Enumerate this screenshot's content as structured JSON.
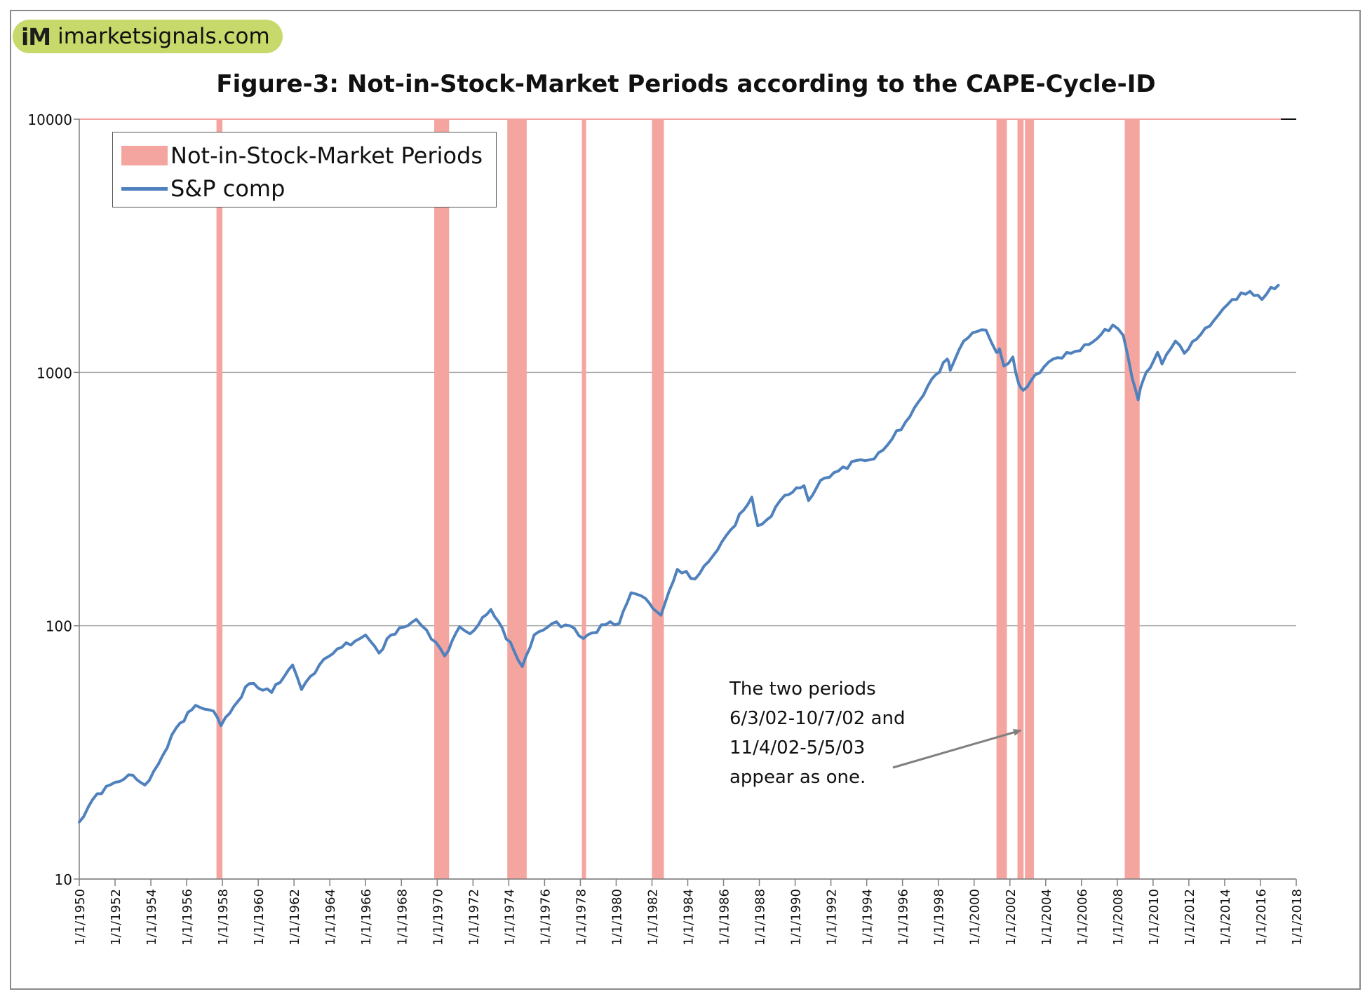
{
  "logo": {
    "mark": "iM",
    "text": "imarketsignals.com"
  },
  "chart_data": {
    "type": "line",
    "title": "Figure-3:  Not-in-Stock-Market  Periods according to the CAPE-Cycle-ID",
    "xlabel": "",
    "ylabel": "",
    "yscale": "log",
    "ylim": [
      10,
      10000
    ],
    "y_ticks": [
      "10",
      "100",
      "1000",
      "10000"
    ],
    "xlim": [
      "1950-01-01",
      "2018-01-01"
    ],
    "x_ticks": [
      "1/1/1950",
      "1/1/1952",
      "1/1/1954",
      "1/1/1956",
      "1/1/1958",
      "1/1/1960",
      "1/1/1962",
      "1/1/1964",
      "1/1/1966",
      "1/1/1968",
      "1/1/1970",
      "1/1/1972",
      "1/1/1974",
      "1/1/1976",
      "1/1/1978",
      "1/1/1980",
      "1/1/1982",
      "1/1/1984",
      "1/1/1986",
      "1/1/1988",
      "1/1/1990",
      "1/1/1992",
      "1/1/1994",
      "1/1/1996",
      "1/1/1998",
      "1/1/2000",
      "1/1/2002",
      "1/1/2004",
      "1/1/2006",
      "1/1/2008",
      "1/1/2010",
      "1/1/2012",
      "1/1/2014",
      "1/1/2016",
      "1/1/2018"
    ],
    "grid": "horizontal",
    "legend": "top-left",
    "legend_entries": [
      "Not-in-Stock-Market Periods",
      "S&P comp"
    ],
    "colors": {
      "periods": "#f4a5a0",
      "line": "#4f81bd",
      "grid": "#a6a6a6",
      "arrow": "#808080"
    },
    "periods": [
      {
        "start": "1957-09-01",
        "end": "1958-01-01"
      },
      {
        "start": "1969-11-01",
        "end": "1970-09-01"
      },
      {
        "start": "1973-12-01",
        "end": "1975-01-01"
      },
      {
        "start": "1978-02-01",
        "end": "1978-04-01"
      },
      {
        "start": "1982-01-01",
        "end": "1982-09-01"
      },
      {
        "start": "2001-04-01",
        "end": "2001-11-01"
      },
      {
        "start": "2002-06-03",
        "end": "2002-10-07"
      },
      {
        "start": "2002-11-04",
        "end": "2003-05-05"
      },
      {
        "start": "2008-06-01",
        "end": "2009-04-01"
      }
    ],
    "series": [
      {
        "name": "S&P comp",
        "x": [
          "1950-01-01",
          "1951-01-01",
          "1952-01-01",
          "1953-01-01",
          "1953-09-01",
          "1954-06-01",
          "1955-06-01",
          "1956-07-01",
          "1957-07-01",
          "1957-12-01",
          "1958-06-01",
          "1959-07-01",
          "1960-10-01",
          "1961-12-01",
          "1962-06-01",
          "1963-06-01",
          "1964-06-01",
          "1965-06-01",
          "1966-01-01",
          "1966-10-01",
          "1967-06-01",
          "1968-11-01",
          "1969-06-01",
          "1970-06-01",
          "1971-04-01",
          "1971-11-01",
          "1973-01-01",
          "1973-06-01",
          "1974-10-01",
          "1975-06-01",
          "1976-06-01",
          "1977-06-01",
          "1978-03-01",
          "1979-06-01",
          "1980-03-01",
          "1980-11-01",
          "1981-06-01",
          "1982-07-01",
          "1983-06-01",
          "1984-06-01",
          "1985-06-01",
          "1986-06-01",
          "1987-08-01",
          "1987-12-01",
          "1988-06-01",
          "1989-06-01",
          "1990-07-01",
          "1990-10-01",
          "1991-06-01",
          "1992-06-01",
          "1993-06-01",
          "1994-06-01",
          "1995-06-01",
          "1996-06-01",
          "1997-06-01",
          "1998-07-01",
          "1998-09-01",
          "1999-06-01",
          "2000-03-01",
          "2000-09-01",
          "2001-04-01",
          "2001-06-01",
          "2001-09-01",
          "2002-03-01",
          "2002-07-01",
          "2002-10-01",
          "2003-06-01",
          "2004-06-01",
          "2005-06-01",
          "2006-06-01",
          "2007-10-01",
          "2008-05-01",
          "2008-11-01",
          "2009-03-01",
          "2009-06-01",
          "2010-04-01",
          "2010-07-01",
          "2011-04-01",
          "2011-10-01",
          "2012-06-01",
          "2013-06-01",
          "2014-06-01",
          "2015-06-01",
          "2016-02-01",
          "2016-08-01",
          "2017-01-01"
        ],
        "values": [
          16.8,
          21.7,
          24.1,
          25.7,
          23.5,
          28.4,
          39.5,
          48.5,
          46.0,
          40.3,
          45.2,
          59.1,
          54.5,
          70.0,
          56.0,
          70.0,
          81.0,
          87.0,
          92.0,
          78.0,
          92.0,
          106.0,
          96.0,
          76.0,
          99.0,
          93.0,
          116.0,
          104.0,
          69.0,
          92.0,
          102.0,
          100.0,
          89.0,
          101.0,
          102.0,
          135.0,
          131.0,
          110.0,
          167.0,
          153.0,
          189.0,
          240.0,
          322.0,
          248.0,
          262.0,
          327.0,
          357.0,
          312.0,
          375.0,
          408.0,
          449.0,
          456.0,
          546.0,
          670.0,
          885.0,
          1130.0,
          1020.0,
          1330.0,
          1450.0,
          1470.0,
          1200.0,
          1240.0,
          1060.0,
          1150.0,
          900.0,
          850.0,
          980.0,
          1130.0,
          1190.0,
          1290.0,
          1540.0,
          1400.0,
          950.0,
          780.0,
          920.0,
          1200.0,
          1080.0,
          1330.0,
          1190.0,
          1350.0,
          1610.0,
          1940.0,
          2090.0,
          1940.0,
          2170.0,
          2210.0
        ]
      }
    ],
    "annotation": [
      "The two periods",
      "6/3/02-10/7/02 and",
      "11/4/02-5/5/03",
      "appear as one."
    ]
  }
}
